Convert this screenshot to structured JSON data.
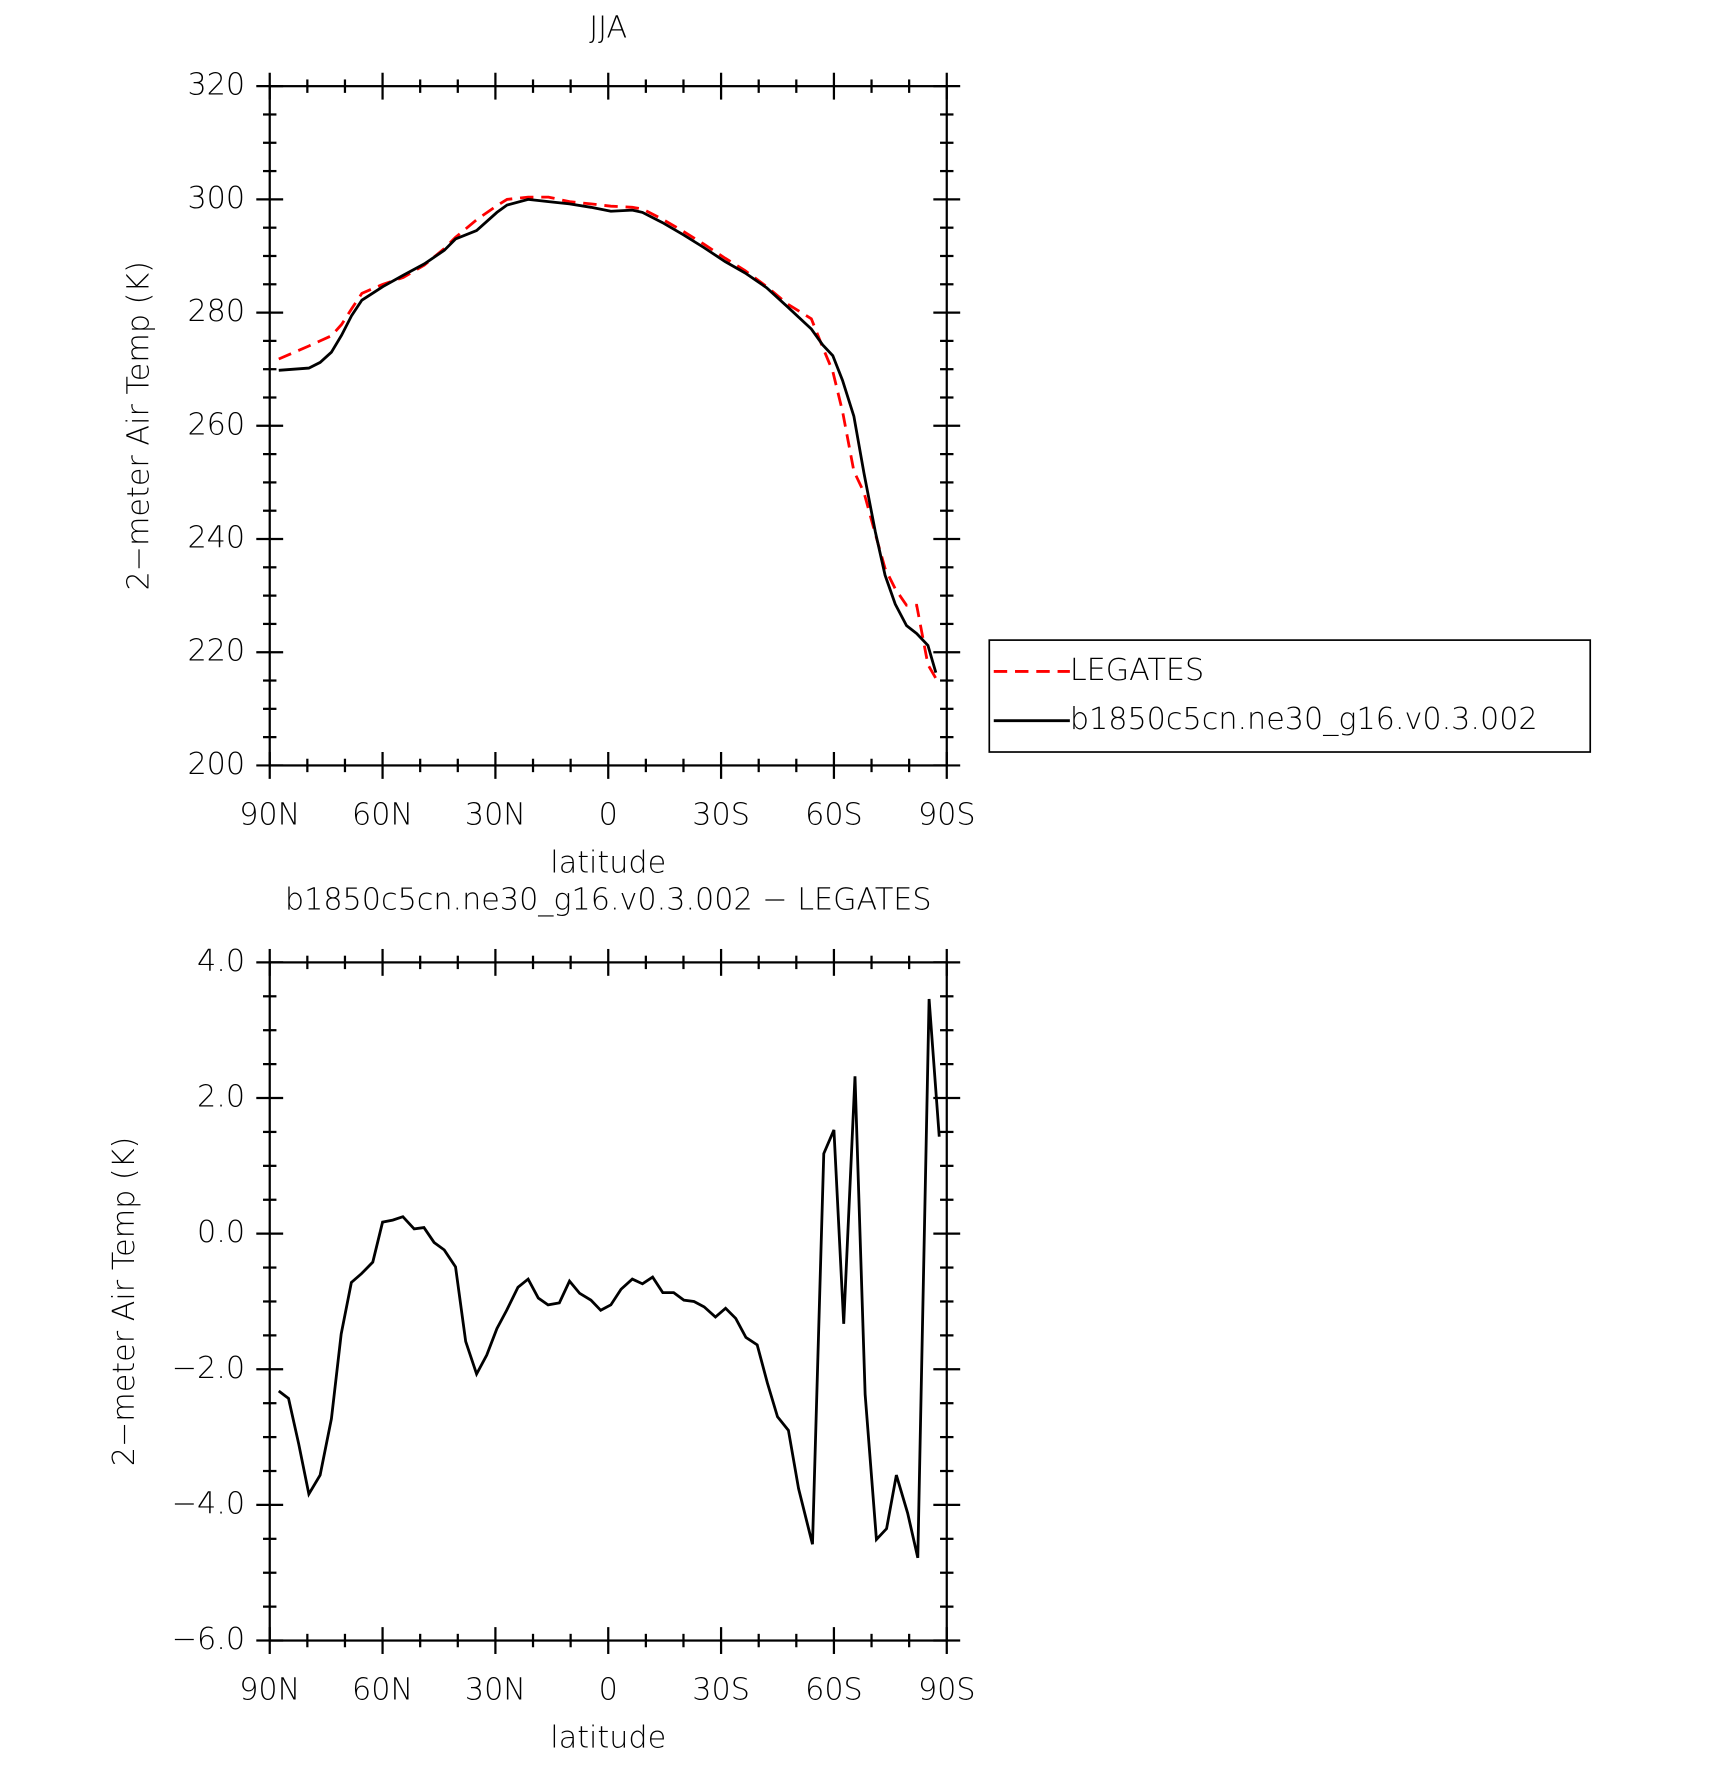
{
  "chart_data": [
    {
      "type": "line",
      "title": "JJA",
      "xlabel": "latitude",
      "ylabel": "2−meter Air Temp (K)",
      "x": [
        87.6,
        79.6,
        76.6,
        73.6,
        70.9,
        68.2,
        65.5,
        59.9,
        54.5,
        48.9,
        43.6,
        40.6,
        35.0,
        29.6,
        26.9,
        21.3,
        15.9,
        10.3,
        4.6,
        -0.7,
        -6.4,
        -9.1,
        -14.4,
        -20.1,
        -25.4,
        -31.1,
        -36.4,
        -42.1,
        -47.7,
        -54.0,
        -57.0,
        -59.7,
        -62.3,
        -65.3,
        -68.0,
        -71.0,
        -73.6,
        -76.3,
        -79.3,
        -82.0,
        -85.0,
        -87.1
      ],
      "series": [
        {
          "name": "LEGATES",
          "color": "#ff0000",
          "style": "dashed",
          "values": [
            271.8,
            274.1,
            275.0,
            275.9,
            277.9,
            280.7,
            283.4,
            285.0,
            286.2,
            288.4,
            291.3,
            293.3,
            296.4,
            298.9,
            300.0,
            300.4,
            300.4,
            299.6,
            299.2,
            298.8,
            298.6,
            298.3,
            296.5,
            294.3,
            292.1,
            289.6,
            287.4,
            284.6,
            281.5,
            278.9,
            273.9,
            269.6,
            262.5,
            252.0,
            248.2,
            240.9,
            234.8,
            231.2,
            228.3,
            228.3,
            217.8,
            215.4
          ]
        },
        {
          "name": "b1850c5cn.ne30_g16.v0.3.002",
          "color": "#000000",
          "style": "solid",
          "values": [
            269.8,
            270.2,
            271.2,
            273.0,
            276.0,
            279.5,
            282.2,
            284.6,
            286.6,
            288.6,
            291.0,
            293.0,
            294.5,
            297.7,
            299.0,
            300.0,
            299.6,
            299.2,
            298.6,
            297.9,
            298.1,
            297.7,
            295.9,
            293.7,
            291.5,
            289.0,
            287.0,
            284.4,
            281.0,
            277.1,
            274.3,
            272.4,
            268.0,
            261.7,
            251.6,
            241.3,
            233.6,
            228.5,
            224.7,
            223.3,
            221.2,
            216.4
          ]
        }
      ],
      "xlim": [
        90,
        -90
      ],
      "xticks": [
        {
          "value": 90,
          "label": "90N"
        },
        {
          "value": 60,
          "label": "60N"
        },
        {
          "value": 30,
          "label": "30N"
        },
        0,
        {
          "value": -30,
          "label": "30S"
        },
        {
          "value": -60,
          "label": "60S"
        },
        {
          "value": -90,
          "label": "90S"
        }
      ],
      "ylim": [
        200,
        320
      ],
      "yticks": [
        200,
        220,
        240,
        260,
        280,
        300,
        320
      ],
      "legend": "right"
    },
    {
      "type": "line",
      "title": "b1850c5cn.ne30_g16.v0.3.002 − LEGATES",
      "xlabel": "latitude",
      "ylabel": "2−meter Air Temp (K)",
      "x": [
        87.6,
        85.0,
        82.3,
        79.6,
        76.6,
        73.6,
        71.0,
        68.3,
        65.6,
        62.6,
        60.0,
        57.3,
        54.6,
        51.6,
        49.0,
        46.3,
        43.6,
        40.6,
        37.9,
        35.0,
        32.3,
        29.6,
        27.0,
        24.0,
        21.3,
        18.6,
        16.0,
        13.0,
        10.3,
        7.6,
        4.6,
        2.0,
        -0.7,
        -3.4,
        -6.4,
        -9.1,
        -11.8,
        -14.5,
        -17.4,
        -20.1,
        -22.8,
        -25.5,
        -28.5,
        -31.2,
        -33.9,
        -36.6,
        -39.6,
        -42.3,
        -45.0,
        -47.9,
        -50.6,
        -54.3,
        -57.3,
        -60.0,
        -62.6,
        -65.6,
        -68.3,
        -71.3,
        -74.0,
        -76.6,
        -79.6,
        -82.3,
        -85.3,
        -88.0
      ],
      "series": [
        {
          "name": "b1850c5cn.ne30_g16.v0.3.002 − LEGATES",
          "color": "#000000",
          "style": "solid",
          "values": [
            -2.32,
            -2.43,
            -3.1,
            -3.84,
            -3.56,
            -2.73,
            -1.48,
            -0.72,
            -0.59,
            -0.42,
            0.17,
            0.2,
            0.25,
            0.07,
            0.09,
            -0.13,
            -0.24,
            -0.49,
            -1.59,
            -2.07,
            -1.79,
            -1.4,
            -1.13,
            -0.79,
            -0.67,
            -0.95,
            -1.05,
            -1.02,
            -0.7,
            -0.88,
            -0.98,
            -1.13,
            -1.05,
            -0.82,
            -0.67,
            -0.74,
            -0.64,
            -0.87,
            -0.87,
            -0.98,
            -1.0,
            -1.08,
            -1.23,
            -1.1,
            -1.25,
            -1.53,
            -1.64,
            -2.2,
            -2.7,
            -2.9,
            -3.76,
            -4.58,
            1.18,
            1.53,
            -1.33,
            2.32,
            -2.37,
            -4.51,
            -4.35,
            -3.56,
            -4.12,
            -4.78,
            3.46,
            1.43
          ]
        }
      ],
      "xlim": [
        90,
        -90
      ],
      "xticks": [
        {
          "value": 90,
          "label": "90N"
        },
        {
          "value": 60,
          "label": "60N"
        },
        {
          "value": 30,
          "label": "30N"
        },
        0,
        {
          "value": -30,
          "label": "30S"
        },
        {
          "value": -60,
          "label": "60S"
        },
        {
          "value": -90,
          "label": "90S"
        }
      ],
      "ylim": [
        -6,
        4
      ],
      "yticks": [
        {
          "value": -6,
          "label": "−6.0"
        },
        {
          "value": -4,
          "label": "−4.0"
        },
        {
          "value": -2,
          "label": "−2.0"
        },
        {
          "value": 0,
          "label": "0.0"
        },
        {
          "value": 2,
          "label": "2.0"
        },
        {
          "value": 4,
          "label": "4.0"
        }
      ]
    }
  ]
}
